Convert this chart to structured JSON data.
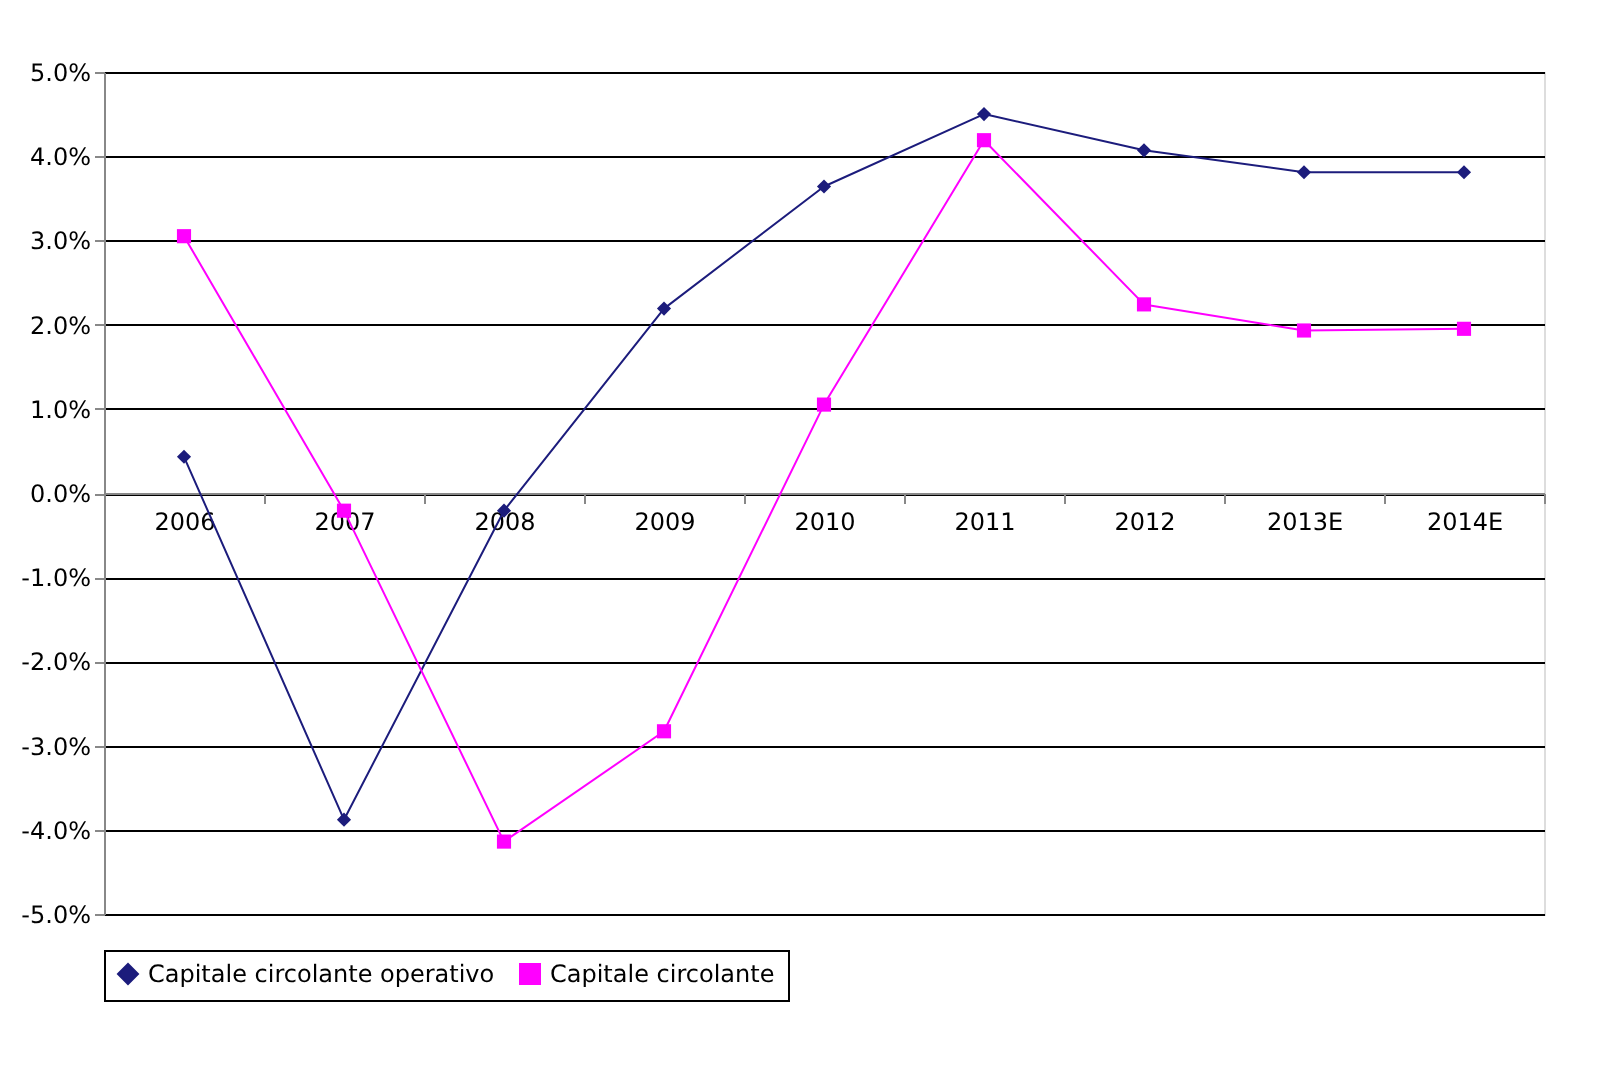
{
  "chart_data": {
    "type": "line",
    "categories": [
      "2006",
      "2007",
      "2008",
      "2009",
      "2010",
      "2011",
      "2012",
      "2013E",
      "2014E"
    ],
    "series": [
      {
        "name": "Capitale circolante operativo",
        "color": "#1c1c7c",
        "marker": "diamond",
        "values": [
          0.43,
          -3.88,
          -0.21,
          2.19,
          3.64,
          4.5,
          4.07,
          3.81,
          3.81
        ]
      },
      {
        "name": "Capitale circolante",
        "color": "#ff00ff",
        "marker": "square",
        "values": [
          3.05,
          -0.21,
          -4.14,
          -2.83,
          1.05,
          4.19,
          2.24,
          1.93,
          1.95
        ]
      }
    ],
    "ylim": [
      -5,
      5
    ],
    "yticks": [
      {
        "value": -5,
        "label": "-5.0%"
      },
      {
        "value": -4,
        "label": "-4.0%"
      },
      {
        "value": -3,
        "label": "-3.0%"
      },
      {
        "value": -2,
        "label": "-2.0%"
      },
      {
        "value": -1,
        "label": "-1.0%"
      },
      {
        "value": 0,
        "label": "0.0%"
      },
      {
        "value": 1,
        "label": "1.0%"
      },
      {
        "value": 2,
        "label": "2.0%"
      },
      {
        "value": 3,
        "label": "3.0%"
      },
      {
        "value": 4,
        "label": "4.0%"
      },
      {
        "value": 5,
        "label": "5.0%"
      }
    ],
    "grid": "y",
    "legend": "bottom",
    "line_style": "solid"
  }
}
